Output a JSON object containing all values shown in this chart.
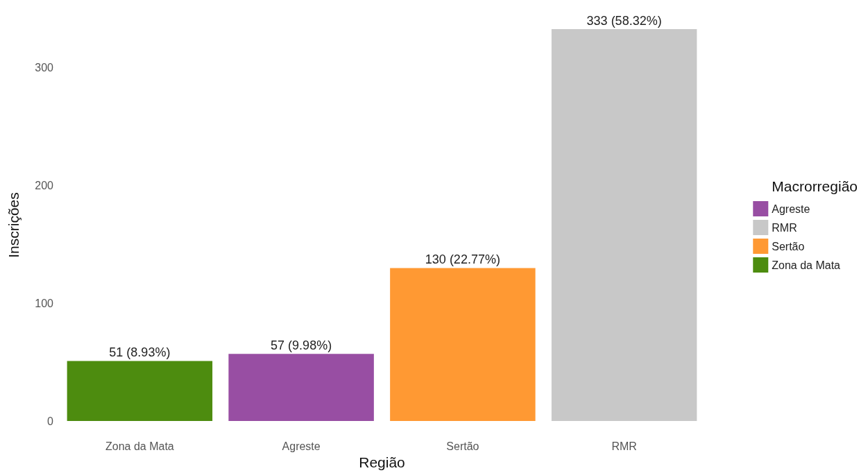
{
  "chart_data": {
    "type": "bar",
    "xlabel": "Região",
    "ylabel": "Inscrições",
    "legend_title": "Macrorregião",
    "categories": [
      "Zona da Mata",
      "Agreste",
      "Sertão",
      "RMR"
    ],
    "series": [
      {
        "name": "Agreste",
        "color": "#984ea3",
        "values": [
          null,
          57,
          null,
          null
        ],
        "value_labels": [
          null,
          "57 (9.98%)",
          null,
          null
        ]
      },
      {
        "name": "RMR",
        "color": "#c8c8c8",
        "values": [
          null,
          null,
          null,
          333
        ],
        "value_labels": [
          null,
          null,
          null,
          "333 (58.32%)"
        ]
      },
      {
        "name": "Sertão",
        "color": "#ff9933",
        "values": [
          null,
          null,
          130,
          null
        ],
        "value_labels": [
          null,
          null,
          "130 (22.77%)",
          null
        ]
      },
      {
        "name": "Zona da Mata",
        "color": "#4d8c0f",
        "values": [
          51,
          null,
          null,
          null
        ],
        "value_labels": [
          "51 (8.93%)",
          null,
          null,
          null
        ]
      }
    ],
    "stacked": true,
    "ylim": [
      0,
      333
    ],
    "yticks": [
      0,
      100,
      200,
      300
    ],
    "grid": false,
    "legend": "right"
  }
}
